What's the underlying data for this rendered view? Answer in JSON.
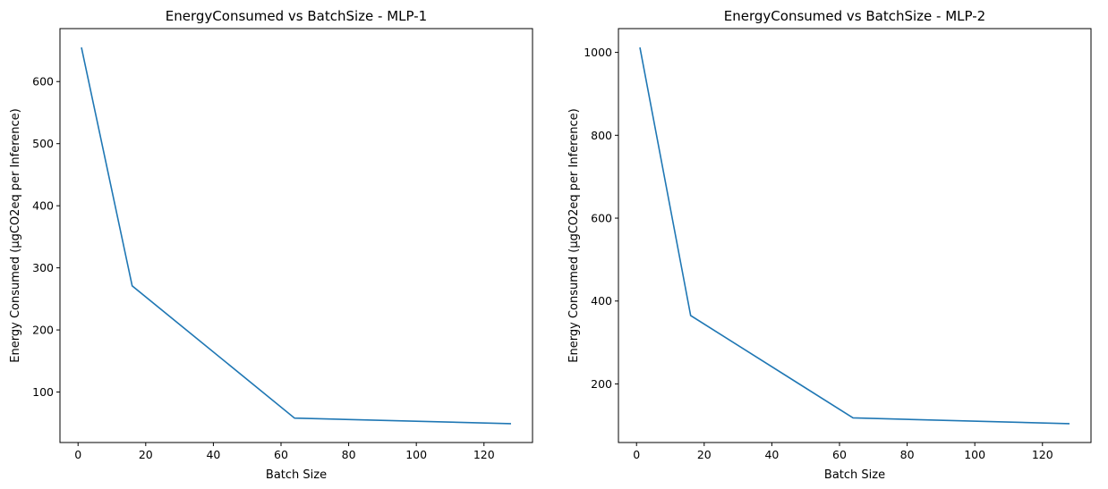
{
  "chart_data": [
    {
      "type": "line",
      "title": "EnergyConsumed vs BatchSize - MLP-1",
      "xlabel": "Batch Size",
      "ylabel": "Energy Consumed (µgCO2eq per Inference)",
      "x": [
        1,
        16,
        64,
        128
      ],
      "series": [
        {
          "values": [
            655,
            271,
            58,
            49
          ],
          "color": "#1f77b4"
        }
      ],
      "xlim": [
        -5.35,
        134.35
      ],
      "ylim": [
        18.7,
        685.3
      ],
      "xticks": [
        0,
        20,
        40,
        60,
        80,
        100,
        120
      ],
      "yticks": [
        100,
        200,
        300,
        400,
        500,
        600
      ],
      "grid": false
    },
    {
      "type": "line",
      "title": "EnergyConsumed vs BatchSize - MLP-2",
      "xlabel": "Batch Size",
      "ylabel": "Energy Consumed (µgCO2eq per Inference)",
      "x": [
        1,
        16,
        64,
        128
      ],
      "series": [
        {
          "values": [
            1012,
            365,
            118,
            104
          ],
          "color": "#1f77b4"
        }
      ],
      "xlim": [
        -5.35,
        134.35
      ],
      "ylim": [
        58.6,
        1057.4
      ],
      "xticks": [
        0,
        20,
        40,
        60,
        80,
        100,
        120
      ],
      "yticks": [
        200,
        400,
        600,
        800,
        1000
      ],
      "grid": false
    }
  ]
}
